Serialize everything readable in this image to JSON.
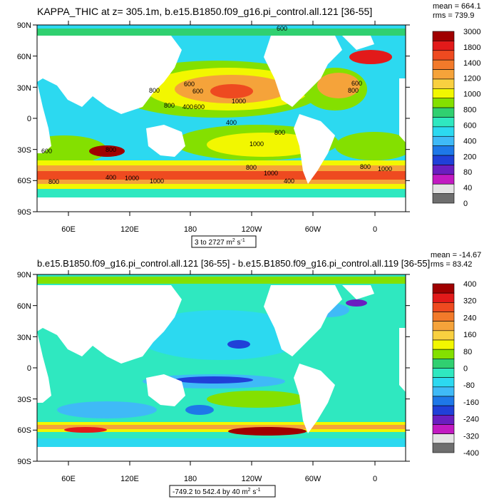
{
  "chart_data": [
    {
      "type": "heatmap",
      "map": "global ocean field, cylindrical equidistant projection",
      "title": "KAPPA_THIC at z= 305.1m, b.e15.B1850.f09_g16.pi_control.all.121 [36-55]",
      "stats": {
        "mean": "mean = 664.1",
        "rms": "rms = 739.9"
      },
      "x_ticks": [
        "60E",
        "120E",
        "180",
        "120W",
        "60W",
        "0"
      ],
      "y_ticks": [
        "90N",
        "60N",
        "30N",
        "0",
        "30S",
        "60S",
        "90S"
      ],
      "range_label": {
        "text": "3 to 2727",
        "unit": "m",
        "exp": "2",
        "unit2": " s",
        "exp2": "-1"
      },
      "contour_labels": [
        "600",
        "800",
        "600",
        "600",
        "800",
        "400",
        "600",
        "1000",
        "400",
        "600",
        "800",
        "1000",
        "800",
        "600",
        "800",
        "1000",
        "1000",
        "800",
        "1000",
        "800",
        "400",
        "800",
        "1000",
        "400"
      ],
      "colorbar": {
        "labels": [
          "3000",
          "1800",
          "1400",
          "1200",
          "1000",
          "800",
          "600",
          "400",
          "200",
          "80",
          "40",
          "0"
        ],
        "colors": [
          "#a00000",
          "#e21a1a",
          "#ee4a20",
          "#f27a2a",
          "#f5a33a",
          "#f9d040",
          "#f2f700",
          "#84e000",
          "#30d070",
          "#2fe8c0",
          "#2cd9f0",
          "#3fbaf7",
          "#1e78e8",
          "#2040d8",
          "#6a1ec0",
          "#c21ac2",
          "#e4e4e4",
          "#6e6e6e"
        ]
      }
    },
    {
      "type": "heatmap",
      "map": "global ocean field difference, cylindrical equidistant projection",
      "title": "b.e15.B1850.f09_g16.pi_control.all.121 [36-55] - b.e15.B1850.f09_g16.pi_control.all.119 [36-55]",
      "stats": {
        "mean": "mean = -14.67",
        "rms": "rms = 83.42"
      },
      "x_ticks": [
        "60E",
        "120E",
        "180",
        "120W",
        "60W",
        "0"
      ],
      "y_ticks": [
        "90N",
        "60N",
        "30N",
        "0",
        "30S",
        "60S",
        "90S"
      ],
      "range_label": {
        "text": "-749.2 to 542.4 by 40",
        "unit": "m",
        "exp": "2",
        "unit2": " s",
        "exp2": "-1"
      },
      "colorbar": {
        "labels": [
          "400",
          "320",
          "240",
          "160",
          "80",
          "0",
          "-80",
          "-160",
          "-240",
          "-320",
          "-400"
        ],
        "colors": [
          "#a00000",
          "#e21a1a",
          "#ee4a20",
          "#f27a2a",
          "#f5a33a",
          "#f9d040",
          "#f2f700",
          "#84e000",
          "#30d070",
          "#2fe8c0",
          "#2cd9f0",
          "#3fbaf7",
          "#1e78e8",
          "#2040d8",
          "#6a1ec0",
          "#c21ac2",
          "#e4e4e4",
          "#6e6e6e"
        ]
      }
    }
  ]
}
